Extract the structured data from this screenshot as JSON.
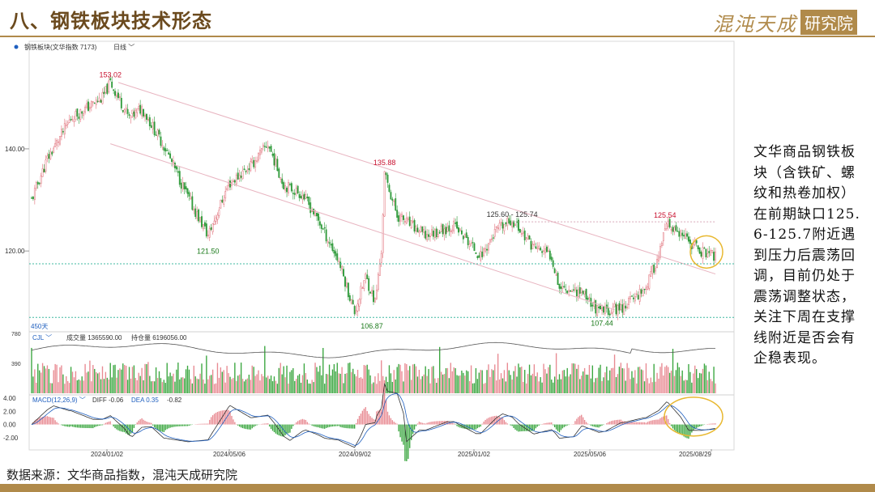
{
  "header": {
    "title": "八、钢铁板块技术形态",
    "brand_main": "混沌天成",
    "brand_box": "研究院"
  },
  "side_note": "文华商品钢铁板块（含铁矿、螺纹和热卷加权）在前期缺口125.6-125.7附近遇到压力后震荡回调，目前仍处于震荡调整状态，关注下周在支撑线附近是否会有企稳表现。",
  "footer": {
    "source": "数据来源：文华商品指数，混沌天成研究院"
  },
  "chart_data": {
    "type": "candlestick",
    "legend": {
      "name": "钢铁板块(文华指数 7173)",
      "period": "日线"
    },
    "price_axis": {
      "ticks": [
        140.0,
        120.0
      ],
      "ylim": [
        104.5,
        159
      ]
    },
    "x_axis": {
      "ticks": [
        "2024/01/02",
        "2024/05/06",
        "2024/09/02",
        "2025/01/02",
        "2025/05/06",
        "2025/08/29"
      ]
    },
    "period_label": "450天",
    "price_path": [
      {
        "i": 0,
        "p": 130
      },
      {
        "i": 10,
        "p": 138
      },
      {
        "i": 25,
        "p": 146
      },
      {
        "i": 45,
        "p": 150
      },
      {
        "i": 50,
        "p": 153
      },
      {
        "i": 62,
        "p": 146
      },
      {
        "i": 70,
        "p": 148
      },
      {
        "i": 85,
        "p": 140
      },
      {
        "i": 100,
        "p": 130
      },
      {
        "i": 112,
        "p": 123
      },
      {
        "i": 125,
        "p": 133
      },
      {
        "i": 140,
        "p": 137
      },
      {
        "i": 150,
        "p": 141
      },
      {
        "i": 160,
        "p": 133
      },
      {
        "i": 172,
        "p": 131
      },
      {
        "i": 182,
        "p": 126
      },
      {
        "i": 195,
        "p": 118
      },
      {
        "i": 205,
        "p": 108
      },
      {
        "i": 212,
        "p": 115
      },
      {
        "i": 218,
        "p": 110
      },
      {
        "i": 222,
        "p": 120
      },
      {
        "i": 224,
        "p": 135
      },
      {
        "i": 232,
        "p": 127
      },
      {
        "i": 250,
        "p": 123
      },
      {
        "i": 268,
        "p": 125
      },
      {
        "i": 285,
        "p": 119
      },
      {
        "i": 295,
        "p": 124
      },
      {
        "i": 305,
        "p": 126
      },
      {
        "i": 318,
        "p": 121
      },
      {
        "i": 330,
        "p": 119
      },
      {
        "i": 335,
        "p": 113
      },
      {
        "i": 350,
        "p": 112
      },
      {
        "i": 360,
        "p": 108
      },
      {
        "i": 375,
        "p": 109
      },
      {
        "i": 390,
        "p": 113
      },
      {
        "i": 398,
        "p": 119
      },
      {
        "i": 403,
        "p": 125
      },
      {
        "i": 412,
        "p": 123
      },
      {
        "i": 425,
        "p": 120
      },
      {
        "i": 434,
        "p": 119
      }
    ],
    "annotations": [
      {
        "text": "153.02",
        "i": 50,
        "p": 153.02,
        "color": "#c8102e",
        "pos": "above"
      },
      {
        "text": "121.50",
        "i": 112,
        "p": 121.5,
        "color": "#1a7a1a",
        "pos": "below"
      },
      {
        "text": "135.88",
        "i": 224,
        "p": 135.88,
        "color": "#c8102e",
        "pos": "above"
      },
      {
        "text": "106.87",
        "i": 216,
        "p": 106.87,
        "color": "#1a7a1a",
        "pos": "below"
      },
      {
        "text": "125.60 - 125.74",
        "i": 305,
        "p": 125.7,
        "color": "#333333",
        "pos": "above"
      },
      {
        "text": "125.54",
        "i": 402,
        "p": 125.54,
        "color": "#c8102e",
        "pos": "above"
      },
      {
        "text": "107.44",
        "i": 362,
        "p": 107.44,
        "color": "#1a7a1a",
        "pos": "below"
      }
    ],
    "trend_lines": [
      {
        "from": {
          "i": 55,
          "p": 153
        },
        "to": {
          "i": 434,
          "p": 115.5
        },
        "color": "#e8b4c0"
      },
      {
        "from": {
          "i": 50,
          "p": 141
        },
        "to": {
          "i": 370,
          "p": 108.5
        },
        "color": "#e8b4c0"
      }
    ],
    "horizontal_lines": [
      {
        "p": 125.7,
        "i_from": 305,
        "i_to": 434,
        "color": "#d8a8b8",
        "dash": "2,2"
      },
      {
        "p": 117.5,
        "color": "#3fb8a0",
        "dash": "2,2"
      },
      {
        "p": 107.0,
        "color": "#3fb8a0",
        "dash": "2,2"
      }
    ],
    "volume": {
      "label": "CJL",
      "items": [
        "成交量 1365590.00",
        "持仓量 6196056.00"
      ],
      "ticks": [
        780,
        390
      ],
      "ylim": [
        0,
        800
      ]
    },
    "macd": {
      "label": "MACD(12,26,9)",
      "diff": "DIFF -0.06",
      "dea": "DEA 0.35",
      "macd": "-0.82",
      "ticks": [
        4.0,
        2.0,
        0.0,
        -2.0
      ],
      "ylim": [
        -3.5,
        4.5
      ]
    },
    "highlights": [
      "price-circle",
      "macd-circle"
    ]
  }
}
